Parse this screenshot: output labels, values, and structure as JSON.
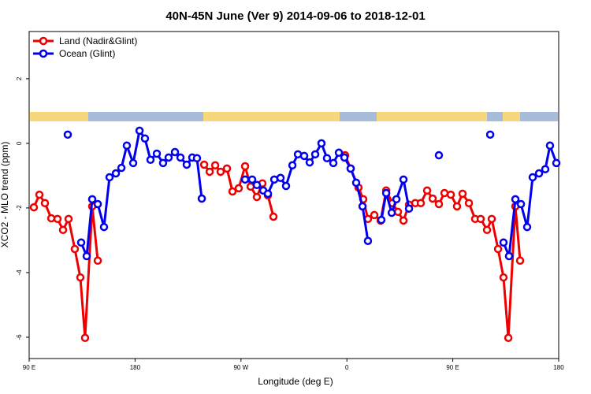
{
  "chart_data": {
    "type": "line",
    "title": "40N-45N June (Ver 9)   2014-09-06 to 2018-12-01",
    "x_label": "Longitude (deg E)",
    "y_label": "XCO2 - MLO trend (ppm)",
    "xlim": [
      90,
      540
    ],
    "xticks": [
      {
        "value": 90,
        "label": "90 E"
      },
      {
        "value": 180,
        "label": "180"
      },
      {
        "value": 270,
        "label": "90 W"
      },
      {
        "value": 360,
        "label": "0"
      },
      {
        "value": 450,
        "label": "90 E"
      },
      {
        "value": 540,
        "label": "180"
      }
    ],
    "ylim": [
      -6.66,
      3.46
    ],
    "yticks": [
      -6,
      -4,
      -2,
      0,
      2
    ],
    "legend": "top-left",
    "series": [
      {
        "name": "Land (Nadir&Glint)",
        "color": "#ee0000",
        "x": [
          94,
          98.7,
          103.4,
          108.8,
          114.1,
          118.8,
          123.5,
          128.8,
          133.5,
          137.5,
          143.6,
          148.3,
          null,
          238.7,
          243.4,
          248.1,
          252.7,
          258.1,
          262.8,
          268.1,
          273.5,
          278.2,
          283.5,
          288.2,
          292.9,
          297.6,
          null,
          358.5,
          363.2,
          369.9,
          373.9,
          377.9,
          383.3,
          388.7,
          393.4,
          398.7,
          403.4,
          408.1,
          412.8,
          418.1,
          422.8,
          428.2,
          432.9,
          438.2,
          442.9,
          448.3,
          453.6,
          458.3,
          463.7,
          469.0,
          473.7,
          479.1,
          483.1,
          488.5,
          493.1,
          497.2,
          503.2,
          507.2
        ],
        "values": [
          -1.98,
          -1.59,
          -1.85,
          -2.32,
          -2.34,
          -2.68,
          -2.34,
          -3.27,
          -4.15,
          -6.02,
          -1.95,
          -3.63,
          null,
          -0.66,
          -0.88,
          -0.68,
          -0.88,
          -0.78,
          -1.49,
          -1.39,
          -0.71,
          -1.34,
          -1.66,
          -1.24,
          -1.61,
          -2.27,
          null,
          -0.37,
          -0.78,
          -1.37,
          -1.73,
          -2.34,
          -2.22,
          -2.39,
          -1.46,
          -1.85,
          -2.12,
          -2.39,
          -1.9,
          -1.85,
          -1.85,
          -1.46,
          -1.71,
          -1.88,
          -1.54,
          -1.59,
          -1.95,
          -1.56,
          -1.85,
          -2.34,
          -2.34,
          -2.68,
          -2.34,
          -3.27,
          -4.15,
          -6.02,
          -1.95,
          -3.63
        ]
      },
      {
        "name": "Ocean (Glint)",
        "color": "#0000ee",
        "x": [
          122.8,
          null,
          134.2,
          138.9,
          143.6,
          148.3,
          153.6,
          158.3,
          163.7,
          168.4,
          173.0,
          178.4,
          183.8,
          188.4,
          193.1,
          198.5,
          203.8,
          208.5,
          213.9,
          218.6,
          223.9,
          228.6,
          232.6,
          236.7,
          null,
          273.5,
          279.5,
          283.5,
          288.9,
          292.9,
          298.3,
          303.6,
          308.3,
          313.7,
          318.4,
          323.7,
          328.4,
          333.1,
          338.4,
          343.1,
          348.5,
          353.2,
          357.9,
          363.2,
          367.9,
          373.3,
          377.9,
          null,
          389.3,
          393.4,
          398.1,
          402.1,
          408.1,
          412.8,
          null,
          438.2,
          null,
          481.8,
          null,
          493.1,
          497.8,
          503.2,
          507.9,
          513.2,
          517.9,
          523.3,
          528.6,
          532.6,
          538.0
        ],
        "values": [
          0.27,
          null,
          -3.07,
          -3.49,
          -1.73,
          -1.88,
          -2.59,
          -1.05,
          -0.93,
          -0.76,
          -0.07,
          -0.61,
          0.39,
          0.15,
          -0.51,
          -0.32,
          -0.61,
          -0.44,
          -0.27,
          -0.44,
          -0.66,
          -0.44,
          -0.46,
          -1.71,
          null,
          -1.12,
          -1.12,
          -1.29,
          -1.46,
          -1.56,
          -1.12,
          -1.07,
          -1.32,
          -0.68,
          -0.34,
          -0.39,
          -0.59,
          -0.34,
          0.0,
          -0.46,
          -0.61,
          -0.29,
          -0.44,
          -0.78,
          -1.22,
          -1.95,
          -3.02,
          null,
          -2.37,
          -1.54,
          -2.15,
          -1.73,
          -1.12,
          -2.02,
          null,
          -0.37,
          null,
          0.27,
          null,
          -3.07,
          -3.49,
          -1.73,
          -1.88,
          -2.59,
          -1.05,
          -0.93,
          -0.8,
          -0.07,
          -0.61
        ]
      }
    ]
  }
}
